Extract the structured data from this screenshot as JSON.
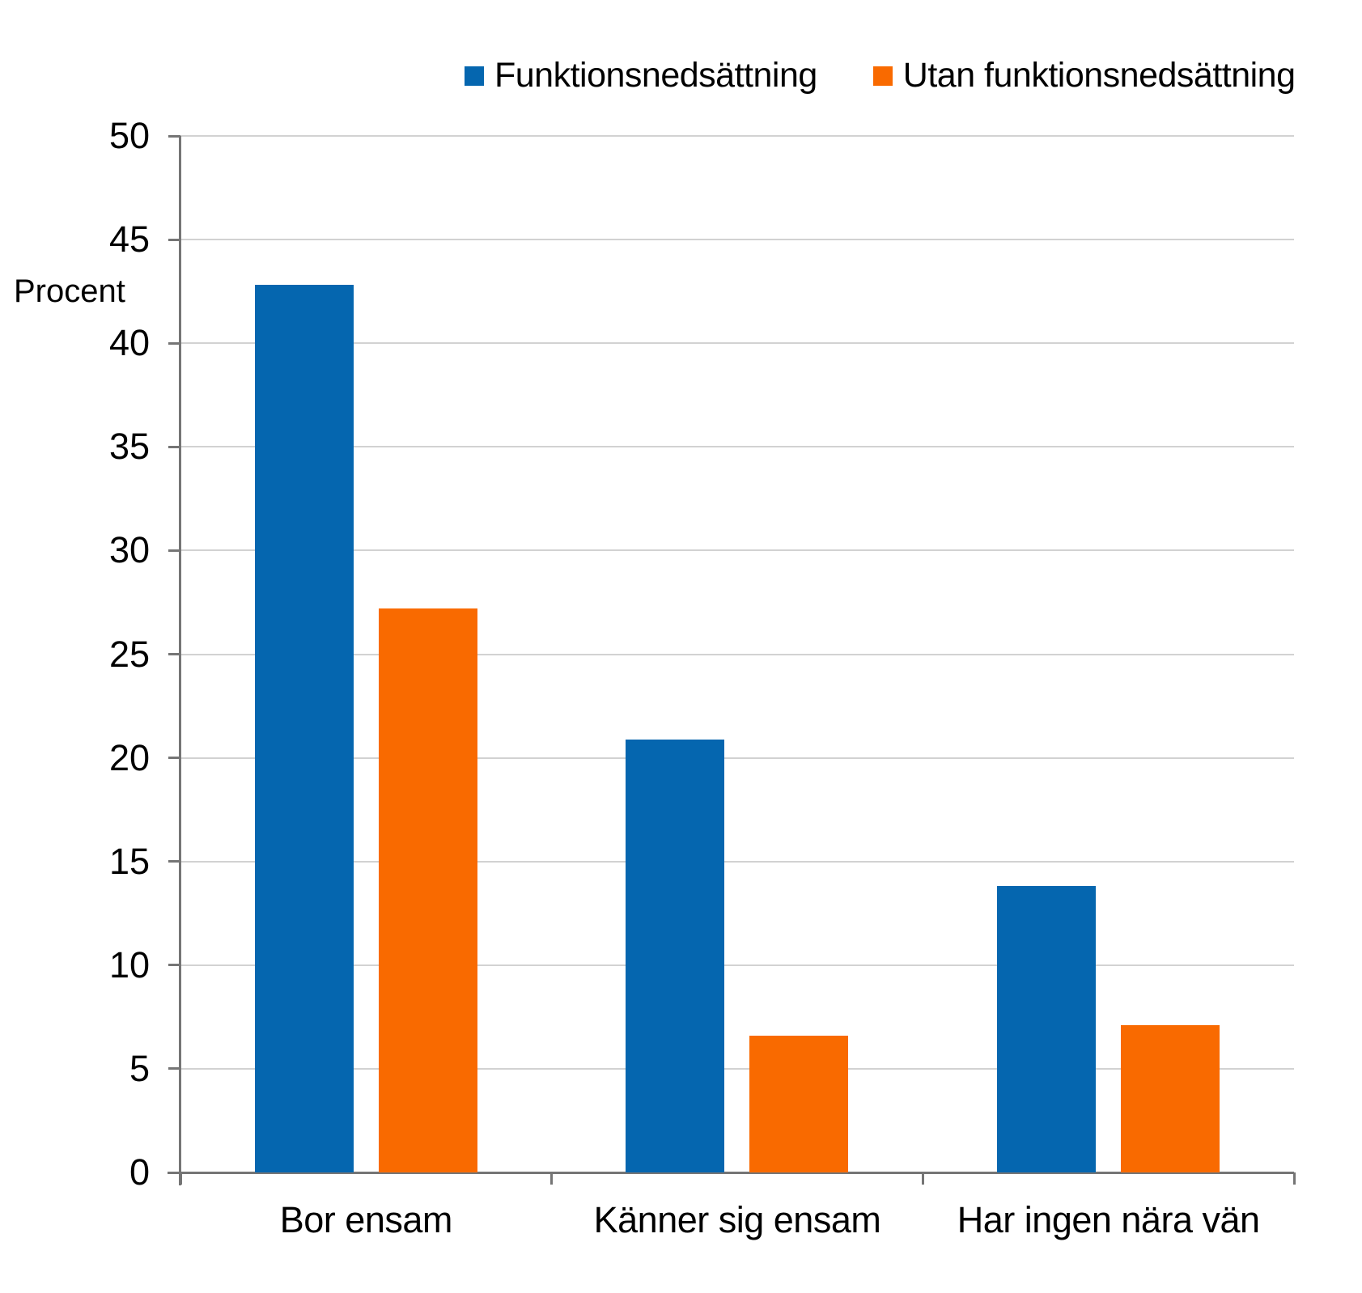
{
  "chart_data": {
    "type": "bar",
    "title": "",
    "ylabel": "Procent",
    "xlabel": "",
    "categories": [
      "Bor ensam",
      "Känner sig ensam",
      "Har ingen nära vän"
    ],
    "series": [
      {
        "name": "Funktionsnedsättning",
        "color": "#0566AF",
        "values": [
          42.8,
          20.9,
          13.8
        ]
      },
      {
        "name": "Utan funktionsnedsättning",
        "color": "#F96A00",
        "values": [
          27.2,
          6.6,
          7.1
        ]
      }
    ],
    "ylim": [
      0,
      50
    ],
    "ytick_step": 5,
    "grid": true,
    "legend_position": "top",
    "colors": {
      "background": "#ffffff",
      "gridline": "#d2d2d2",
      "axis": "#757575",
      "text": "#000000"
    }
  }
}
